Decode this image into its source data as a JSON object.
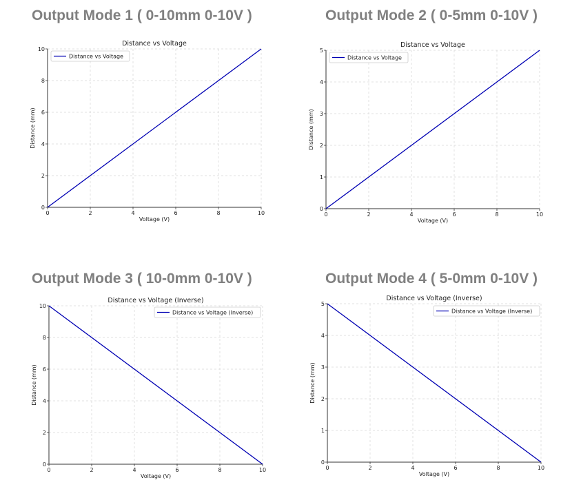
{
  "mode_titles": [
    "Output Mode 1  ( 0-10mm 0-10V )",
    "Output Mode 2  ( 0-5mm 0-10V )",
    "Output Mode 3  ( 10-0mm 0-10V )",
    "Output Mode 4  ( 5-0mm 0-10V )"
  ],
  "colors": {
    "line": "#0000b3",
    "grid": "#d9d9d9",
    "axis": "#333333",
    "title": "#808080"
  },
  "chart_data": [
    {
      "type": "line",
      "title": "Distance vs Voltage",
      "xlabel": "Voltage (V)",
      "ylabel": "Distance (mm)",
      "xlim": [
        0,
        10
      ],
      "ylim": [
        0,
        10
      ],
      "xticks": [
        0,
        2,
        4,
        6,
        8,
        10
      ],
      "yticks": [
        0,
        2,
        4,
        6,
        8,
        10
      ],
      "grid": true,
      "legend": "upper-left",
      "series": [
        {
          "name": "Distance vs Voltage",
          "x": [
            0,
            10
          ],
          "y": [
            0,
            10
          ]
        }
      ]
    },
    {
      "type": "line",
      "title": "Distance vs Voltage",
      "xlabel": "Voltage (V)",
      "ylabel": "Distance (mm)",
      "xlim": [
        0,
        10
      ],
      "ylim": [
        0,
        5
      ],
      "xticks": [
        0,
        2,
        4,
        6,
        8,
        10
      ],
      "yticks": [
        0,
        1,
        2,
        3,
        4,
        5
      ],
      "grid": true,
      "legend": "upper-left",
      "series": [
        {
          "name": "Distance vs Voltage",
          "x": [
            0,
            10
          ],
          "y": [
            0,
            5
          ]
        }
      ]
    },
    {
      "type": "line",
      "title": "Distance vs Voltage (Inverse)",
      "xlabel": "Voltage (V)",
      "ylabel": "Distance (mm)",
      "xlim": [
        0,
        10
      ],
      "ylim": [
        0,
        10
      ],
      "xticks": [
        0,
        2,
        4,
        6,
        8,
        10
      ],
      "yticks": [
        0,
        2,
        4,
        6,
        8,
        10
      ],
      "grid": true,
      "legend": "upper-right",
      "series": [
        {
          "name": "Distance vs Voltage (Inverse)",
          "x": [
            0,
            10
          ],
          "y": [
            10,
            0
          ]
        }
      ]
    },
    {
      "type": "line",
      "title": "Distance vs Voltage (Inverse)",
      "xlabel": "Voltage (V)",
      "ylabel": "Distance (mm)",
      "xlim": [
        0,
        10
      ],
      "ylim": [
        0,
        5
      ],
      "xticks": [
        0,
        2,
        4,
        6,
        8,
        10
      ],
      "yticks": [
        0,
        1,
        2,
        3,
        4,
        5
      ],
      "grid": true,
      "legend": "upper-right",
      "series": [
        {
          "name": "Distance vs Voltage (Inverse)",
          "x": [
            0,
            10
          ],
          "y": [
            5,
            0
          ]
        }
      ]
    }
  ]
}
